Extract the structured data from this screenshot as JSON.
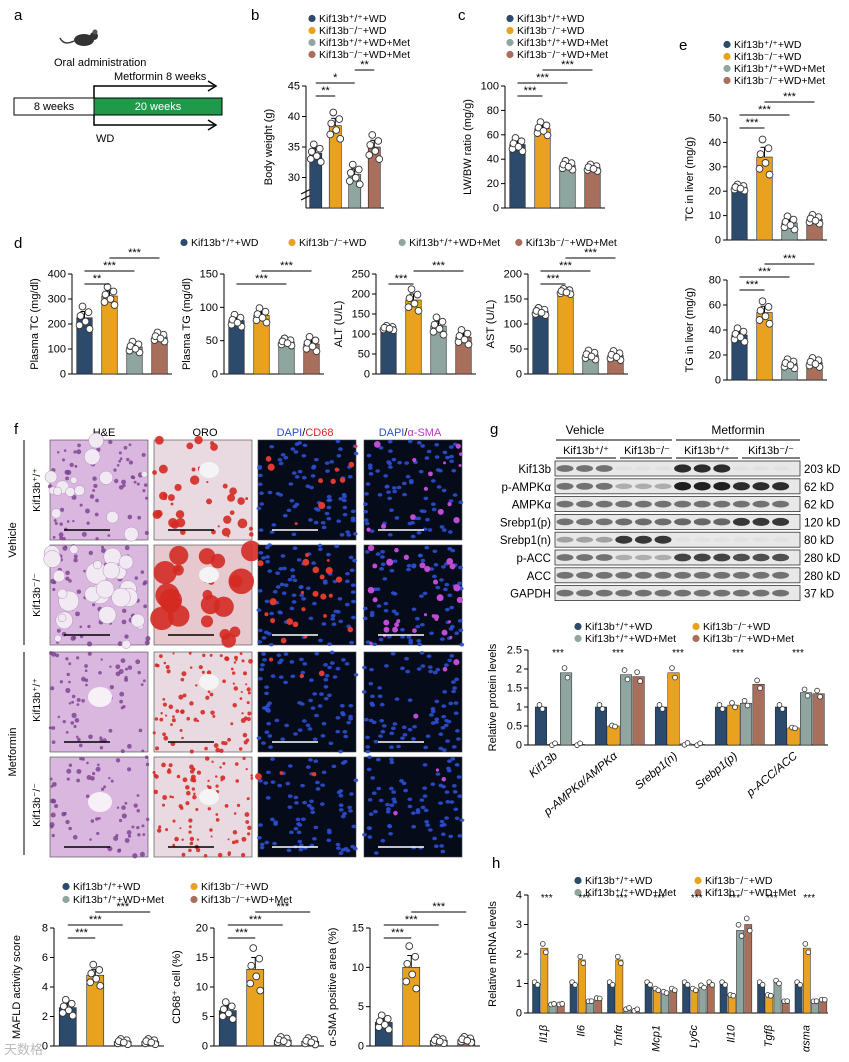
{
  "colors": {
    "wt": "#2c4a6b",
    "ko": "#e8a21f",
    "wtmet": "#8fa6a0",
    "komet": "#a8705c",
    "green": "#1e9a4a",
    "tissue_he": "#c9a3cf",
    "oro_red": "#d42a22",
    "dapi": "#2b4fd1"
  },
  "legend": {
    "wt": "Kif13b⁺/⁺+WD",
    "ko": "Kif13b⁻/⁻+WD",
    "wtmet": "Kif13b⁺/⁺+WD+Met",
    "komet": "Kif13b⁻/⁻+WD+Met"
  },
  "panel_a": {
    "letter": "a",
    "title": "Oral administration",
    "met_label": "Metformin 8 weeks",
    "box1": "8 weeks",
    "box2": "20 weeks",
    "wd": "WD"
  },
  "panel_f": {
    "letter": "f",
    "cols": [
      "H&E",
      "ORO",
      "DAPI/CD68",
      "DAPI/α-SMA"
    ],
    "col_dapi": "DAPI",
    "col_cd68": "CD68",
    "col_sma": "α-SMA",
    "vehicle": "Vehicle",
    "metformin": "Metformin",
    "wt": "Kif13b⁺/⁺",
    "ko": "Kif13b⁻/⁻"
  },
  "panel_g": {
    "letter": "g",
    "vehicle": "Vehicle",
    "metformin": "Metformin",
    "wt": "Kif13b⁺/⁺",
    "ko": "Kif13b⁻/⁻",
    "bands": [
      {
        "name": "Kif13b",
        "size": "203 kD"
      },
      {
        "name": "p-AMPKα",
        "size": "62 kD"
      },
      {
        "name": "AMPKα",
        "size": "62 kD"
      },
      {
        "name": "Srebp1(p)",
        "size": "120 kD"
      },
      {
        "name": "Srebp1(n)",
        "size": "80 kD"
      },
      {
        "name": "p-ACC",
        "size": "280 kD"
      },
      {
        "name": "ACC",
        "size": "280 kD"
      },
      {
        "name": "GAPDH",
        "size": "37 kD"
      }
    ]
  },
  "panel_h_letter": "h",
  "panel_d_letter": "d",
  "panel_b_letter": "b",
  "panel_c_letter": "c",
  "panel_e_letter": "e",
  "watermark": "天数格",
  "chart_data": [
    {
      "id": "b",
      "type": "bar",
      "ylabel": "Body weight (g)",
      "ylim": [
        25,
        45
      ],
      "yticks": [
        30,
        35,
        40,
        45
      ],
      "axis_break": true,
      "categories": [
        "wt",
        "ko",
        "wtmet",
        "komet"
      ],
      "values": [
        34,
        38.5,
        30.5,
        35
      ],
      "errors": [
        0.8,
        1.2,
        0.9,
        1.1
      ],
      "sig": [
        {
          "a": 0,
          "b": 1,
          "t": "**"
        },
        {
          "a": 0,
          "b": 2,
          "t": "*"
        },
        {
          "a": 2,
          "b": 3,
          "t": "**"
        }
      ]
    },
    {
      "id": "c",
      "type": "bar",
      "ylabel": "LW/BW ratio (mg/g)",
      "ylim": [
        0,
        100
      ],
      "yticks": [
        0,
        20,
        40,
        60,
        80,
        100
      ],
      "categories": [
        "wt",
        "ko",
        "wtmet",
        "komet"
      ],
      "values": [
        52,
        65,
        35,
        33
      ],
      "errors": [
        3,
        3,
        2,
        1.5
      ],
      "sig": [
        {
          "a": 0,
          "b": 1,
          "t": "***"
        },
        {
          "a": 0,
          "b": 2,
          "t": "***"
        },
        {
          "a": 1,
          "b": 3,
          "t": "***"
        }
      ]
    },
    {
      "id": "e1",
      "type": "bar",
      "ylabel": "TC in liver (mg/g)",
      "ylim": [
        0,
        50
      ],
      "yticks": [
        0,
        10,
        20,
        30,
        40,
        50
      ],
      "categories": [
        "wt",
        "ko",
        "wtmet",
        "komet"
      ],
      "values": [
        21.5,
        34,
        7,
        8.5
      ],
      "errors": [
        0.7,
        4,
        1.5,
        1
      ],
      "sig": [
        {
          "a": 0,
          "b": 1,
          "t": "***"
        },
        {
          "a": 0,
          "b": 2,
          "t": "***"
        },
        {
          "a": 1,
          "b": 3,
          "t": "***"
        }
      ]
    },
    {
      "id": "e2",
      "type": "bar",
      "ylabel": "TG in liver (mg/g)",
      "ylim": [
        0,
        80
      ],
      "yticks": [
        0,
        20,
        40,
        60,
        80
      ],
      "categories": [
        "wt",
        "ko",
        "wtmet",
        "komet"
      ],
      "values": [
        36,
        54,
        13,
        14
      ],
      "errors": [
        3,
        5,
        2,
        2
      ],
      "sig": [
        {
          "a": 0,
          "b": 1,
          "t": "***"
        },
        {
          "a": 0,
          "b": 2,
          "t": "***"
        },
        {
          "a": 1,
          "b": 3,
          "t": "***"
        }
      ]
    },
    {
      "id": "d1",
      "type": "bar",
      "ylabel": "Plasma TC (mg/dl)",
      "ylim": [
        0,
        400
      ],
      "yticks": [
        0,
        100,
        200,
        300,
        400
      ],
      "categories": [
        "wt",
        "ko",
        "wtmet",
        "komet"
      ],
      "values": [
        225,
        312,
        108,
        148
      ],
      "errors": [
        25,
        20,
        12,
        10
      ],
      "sig": [
        {
          "a": 0,
          "b": 1,
          "t": "**"
        },
        {
          "a": 0,
          "b": 2,
          "t": "***"
        },
        {
          "a": 1,
          "b": 3,
          "t": "***"
        }
      ]
    },
    {
      "id": "d2",
      "type": "bar",
      "ylabel": "Plasma TG (mg/dl)",
      "ylim": [
        0,
        150
      ],
      "yticks": [
        0,
        50,
        100,
        150
      ],
      "categories": [
        "wt",
        "ko",
        "wtmet",
        "komet"
      ],
      "values": [
        80,
        88,
        48,
        45
      ],
      "errors": [
        5,
        6,
        3,
        6
      ],
      "sig": [
        {
          "a": 0,
          "b": 2,
          "t": "***"
        },
        {
          "a": 1,
          "b": 3,
          "t": "***"
        }
      ]
    },
    {
      "id": "d3",
      "type": "bar",
      "ylabel": "ALT (U/L)",
      "ylim": [
        0,
        250
      ],
      "yticks": [
        0,
        50,
        100,
        150,
        200,
        250
      ],
      "categories": [
        "wt",
        "ko",
        "wtmet",
        "komet"
      ],
      "values": [
        115,
        185,
        120,
        92
      ],
      "errors": [
        3,
        15,
        12,
        10
      ],
      "sig": [
        {
          "a": 0,
          "b": 1,
          "t": "***"
        },
        {
          "a": 1,
          "b": 3,
          "t": "***"
        }
      ]
    },
    {
      "id": "d4",
      "type": "bar",
      "ylabel": "AST (U/L)",
      "ylim": [
        0,
        200
      ],
      "yticks": [
        0,
        50,
        100,
        150,
        200
      ],
      "categories": [
        "wt",
        "ko",
        "wtmet",
        "komet"
      ],
      "values": [
        125,
        165,
        38,
        37
      ],
      "errors": [
        4,
        3,
        5,
        5
      ],
      "sig": [
        {
          "a": 0,
          "b": 1,
          "t": "***"
        },
        {
          "a": 0,
          "b": 2,
          "t": "***"
        },
        {
          "a": 1,
          "b": 3,
          "t": "***"
        }
      ]
    },
    {
      "id": "f1",
      "type": "bar",
      "ylabel": "MAFLD activity score",
      "ylim": [
        0,
        8
      ],
      "yticks": [
        0,
        2,
        4,
        6,
        8
      ],
      "categories": [
        "wt",
        "ko",
        "wtmet",
        "komet"
      ],
      "values": [
        2.6,
        4.8,
        0.3,
        0.3
      ],
      "errors": [
        0.3,
        0.4,
        0.1,
        0.1
      ],
      "sig": [
        {
          "a": 0,
          "b": 1,
          "t": "***"
        },
        {
          "a": 0,
          "b": 2,
          "t": "***"
        },
        {
          "a": 1,
          "b": 3,
          "t": "***"
        }
      ]
    },
    {
      "id": "f2",
      "type": "bar",
      "ylabel": "CD68⁺ cell (%)",
      "ylim": [
        0,
        20
      ],
      "yticks": [
        0,
        5,
        10,
        15,
        20
      ],
      "categories": [
        "wt",
        "ko",
        "wtmet",
        "komet"
      ],
      "values": [
        6,
        13,
        1,
        0.8
      ],
      "errors": [
        0.8,
        2,
        0.3,
        0.3
      ],
      "sig": [
        {
          "a": 0,
          "b": 1,
          "t": "***"
        },
        {
          "a": 0,
          "b": 2,
          "t": "***"
        },
        {
          "a": 1,
          "b": 3,
          "t": "***"
        }
      ]
    },
    {
      "id": "f3",
      "type": "bar",
      "ylabel": "α-SMA positive area (%)",
      "ylim": [
        0,
        15
      ],
      "yticks": [
        0,
        5,
        10,
        15
      ],
      "categories": [
        "wt",
        "ko",
        "wtmet",
        "komet"
      ],
      "values": [
        3,
        10,
        0.7,
        0.8
      ],
      "errors": [
        0.5,
        1.5,
        0.2,
        0.2
      ],
      "sig": [
        {
          "a": 0,
          "b": 1,
          "t": "***"
        },
        {
          "a": 0,
          "b": 2,
          "t": "***"
        },
        {
          "a": 1,
          "b": 3,
          "t": "***"
        }
      ]
    },
    {
      "id": "g",
      "type": "bar",
      "ylabel": "Relative protein levels",
      "ylim": [
        0,
        2.5
      ],
      "yticks": [
        0,
        0.5,
        1,
        1.5,
        2,
        2.5
      ],
      "groups": [
        "Kif13b",
        "p-AMPKα/AMPKα",
        "Srebp1(n)",
        "Srebp1(p)",
        "p-ACC/ACC"
      ],
      "series": [
        {
          "key": "wt",
          "values": [
            1,
            1,
            1,
            1,
            1
          ]
        },
        {
          "key": "ko",
          "values": [
            0.02,
            0.5,
            1.9,
            1.05,
            0.45
          ]
        },
        {
          "key": "wtmet",
          "values": [
            1.9,
            1.85,
            0.03,
            1.1,
            1.38
          ]
        },
        {
          "key": "komet",
          "values": [
            0.02,
            1.8,
            0.02,
            1.6,
            1.35
          ]
        }
      ]
    },
    {
      "id": "h",
      "type": "bar",
      "ylabel": "Relative mRNA levels",
      "ylim": [
        0,
        4
      ],
      "yticks": [
        0,
        1,
        2,
        3,
        4
      ],
      "groups": [
        "Il1β",
        "Il6",
        "Tnfα",
        "Mcp1",
        "Ly6c",
        "Il10",
        "Tgfβ",
        "αsma"
      ],
      "series": [
        {
          "key": "wt",
          "values": [
            1,
            1,
            1,
            1,
            1,
            1,
            1,
            1
          ]
        },
        {
          "key": "ko",
          "values": [
            2.2,
            1.8,
            1.8,
            0.8,
            0.8,
            0.6,
            0.6,
            2.2
          ]
        },
        {
          "key": "wtmet",
          "values": [
            0.3,
            0.4,
            0.15,
            0.7,
            0.9,
            2.8,
            1.05,
            0.4
          ]
        },
        {
          "key": "komet",
          "values": [
            0.3,
            0.5,
            0.1,
            0.8,
            1.0,
            3.0,
            0.4,
            0.45
          ]
        }
      ]
    }
  ]
}
